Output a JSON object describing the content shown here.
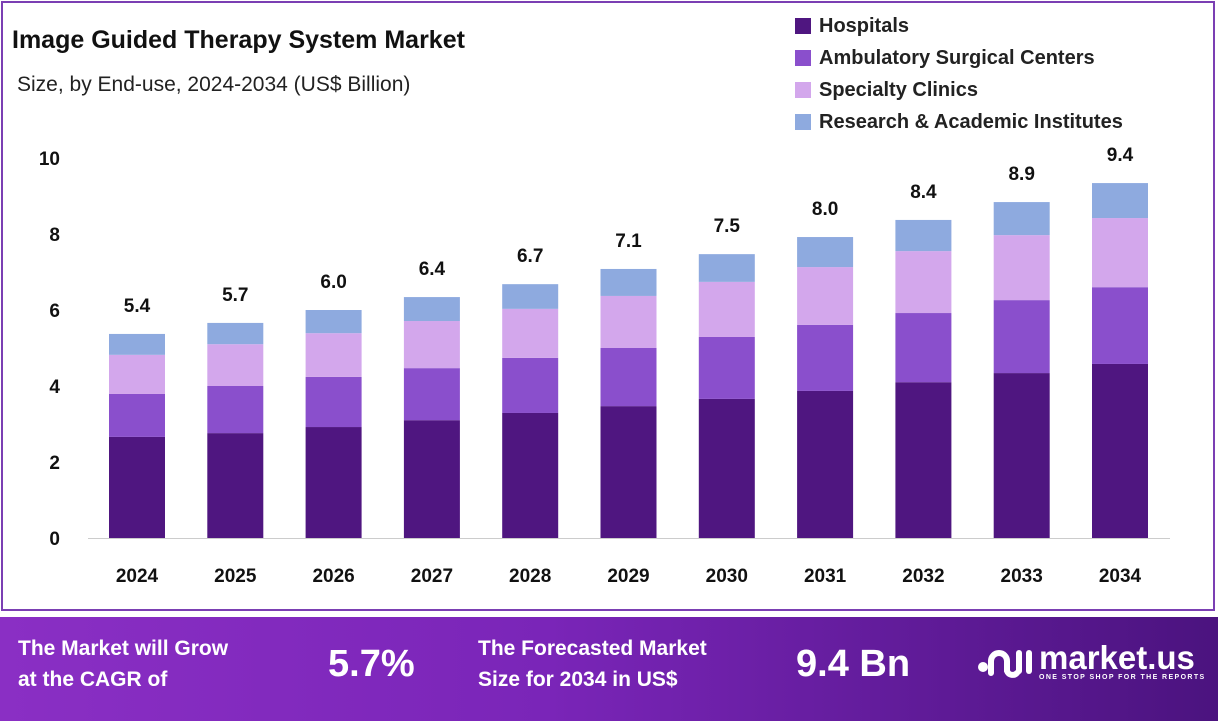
{
  "chart_data": {
    "type": "bar",
    "stacked": true,
    "title": "Image Guided Therapy System Market",
    "subtitle": "Size, by End-use, 2024-2034 (US$ Billion)",
    "categories": [
      "2024",
      "2025",
      "2026",
      "2027",
      "2028",
      "2029",
      "2030",
      "2031",
      "2032",
      "2033",
      "2034"
    ],
    "series": [
      {
        "name": "Hospitals",
        "color": "#4f1680",
        "values": [
          2.66,
          2.76,
          2.92,
          3.1,
          3.29,
          3.47,
          3.66,
          3.87,
          4.1,
          4.34,
          4.58
        ]
      },
      {
        "name": "Ambulatory Surgical Centers",
        "color": "#8a4fcc",
        "values": [
          1.13,
          1.24,
          1.32,
          1.37,
          1.45,
          1.53,
          1.63,
          1.74,
          1.82,
          1.92,
          2.02
        ]
      },
      {
        "name": "Specialty Clinics",
        "color": "#d3a7ec",
        "values": [
          1.03,
          1.1,
          1.15,
          1.24,
          1.29,
          1.37,
          1.45,
          1.52,
          1.63,
          1.71,
          1.82
        ]
      },
      {
        "name": "Research & Academic Institutes",
        "color": "#8eaadf",
        "values": [
          0.55,
          0.56,
          0.61,
          0.63,
          0.65,
          0.71,
          0.73,
          0.79,
          0.82,
          0.87,
          0.92
        ]
      }
    ],
    "totals": [
      "5.4",
      "5.7",
      "6.0",
      "6.4",
      "6.7",
      "7.1",
      "7.5",
      "8.0",
      "8.4",
      "8.9",
      "9.4"
    ],
    "yticks": [
      "0",
      "2",
      "4",
      "6",
      "8",
      "10"
    ],
    "ylim": [
      0,
      10
    ],
    "grid": false,
    "legend_position": "top-right"
  },
  "footer": {
    "cagr_text_1": "The Market will Grow",
    "cagr_text_2": "at the CAGR of",
    "cagr_value": "5.7%",
    "forecast_text_1": "The Forecasted Market",
    "forecast_text_2": "Size for 2034 in US$",
    "forecast_value": "9.4 Bn",
    "logo_text": "market.us",
    "logo_tagline": "ONE STOP SHOP FOR THE REPORTS"
  }
}
